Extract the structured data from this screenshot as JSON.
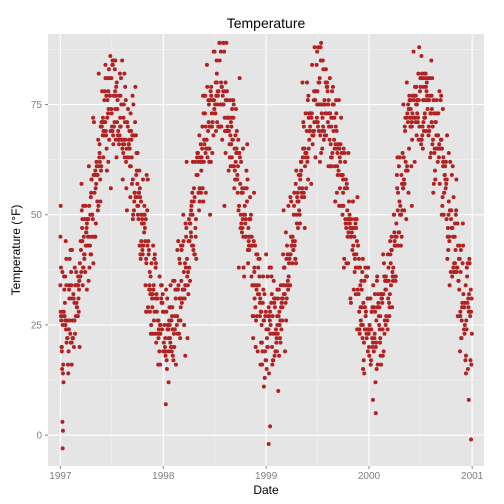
{
  "chart_data": {
    "type": "scatter",
    "title": "Temperature",
    "xlabel": "Date",
    "ylabel": "Temperature (°F)",
    "x_ticks": [
      "1997",
      "1998",
      "1999",
      "2000",
      "2001"
    ],
    "y_ticks": [
      "0",
      "25",
      "50",
      "75"
    ],
    "xlim": [
      "1996-11-18",
      "2001-02-12"
    ],
    "ylim": [
      -7,
      91
    ],
    "grid": true,
    "legend": "none",
    "colors": {
      "panel": "#e5e5e5",
      "grid_major": "#ffffff",
      "grid_minor": "#f2f2f2",
      "point": "#b22222"
    },
    "annual_cycle": {
      "mean_f": 50,
      "amplitude_f": 25,
      "peak_day_of_year": 196,
      "noise_f": 7
    },
    "start_date": "1997-01-01",
    "end_date": "2000-12-31",
    "points": [
      [
        "1997-01-01",
        45
      ],
      [
        "1997-01-02",
        52
      ],
      [
        "1997-01-03",
        38
      ],
      [
        "1997-01-05",
        27
      ],
      [
        "1997-01-06",
        19
      ],
      [
        "1997-01-08",
        3
      ],
      [
        "1997-01-09",
        -3
      ],
      [
        "1997-01-10",
        1
      ],
      [
        "1997-01-12",
        12
      ],
      [
        "1997-01-14",
        36
      ],
      [
        "1997-01-18",
        26
      ],
      [
        "1997-01-22",
        40
      ],
      [
        "1997-02-01",
        34
      ],
      [
        "1997-02-10",
        21
      ],
      [
        "1997-02-20",
        30
      ],
      [
        "1997-03-05",
        36
      ],
      [
        "1997-03-20",
        44
      ],
      [
        "1997-04-05",
        48
      ],
      [
        "1997-04-20",
        55
      ],
      [
        "1997-05-05",
        60
      ],
      [
        "1997-05-20",
        66
      ],
      [
        "1997-06-01",
        72
      ],
      [
        "1997-06-10",
        84
      ],
      [
        "1997-06-20",
        78
      ],
      [
        "1997-07-01",
        81
      ],
      [
        "1997-07-05",
        85
      ],
      [
        "1997-07-15",
        74
      ],
      [
        "1997-08-01",
        70
      ],
      [
        "1997-08-15",
        67
      ],
      [
        "1997-09-01",
        65
      ],
      [
        "1997-09-15",
        58
      ],
      [
        "1997-10-01",
        52
      ],
      [
        "1997-10-15",
        44
      ],
      [
        "1997-11-01",
        40
      ],
      [
        "1997-11-15",
        33
      ],
      [
        "1997-12-01",
        28
      ],
      [
        "1997-12-15",
        22
      ],
      [
        "1998-01-10",
        7
      ],
      [
        "1998-01-20",
        12
      ],
      [
        "1998-02-10",
        24
      ],
      [
        "1998-03-01",
        31
      ],
      [
        "1998-03-20",
        18
      ],
      [
        "1998-04-10",
        45
      ],
      [
        "1998-05-10",
        56
      ],
      [
        "1998-06-01",
        70
      ],
      [
        "1998-06-20",
        77
      ],
      [
        "1998-07-10",
        82
      ],
      [
        "1998-07-20",
        85
      ],
      [
        "1998-08-10",
        80
      ],
      [
        "1998-09-01",
        72
      ],
      [
        "1998-09-20",
        64
      ],
      [
        "1998-10-10",
        55
      ],
      [
        "1998-11-01",
        45
      ],
      [
        "1998-11-20",
        38
      ],
      [
        "1998-12-10",
        30
      ],
      [
        "1999-01-01",
        17
      ],
      [
        "1999-01-10",
        -2
      ],
      [
        "1999-01-15",
        2
      ],
      [
        "1999-02-10",
        25
      ],
      [
        "1999-03-05",
        32
      ],
      [
        "1999-04-01",
        45
      ],
      [
        "1999-05-01",
        59
      ],
      [
        "1999-06-01",
        72
      ],
      [
        "1999-06-20",
        78
      ],
      [
        "1999-07-01",
        87
      ],
      [
        "1999-07-15",
        89
      ],
      [
        "1999-08-01",
        80
      ],
      [
        "1999-08-20",
        72
      ],
      [
        "1999-09-10",
        65
      ],
      [
        "1999-10-01",
        55
      ],
      [
        "1999-10-20",
        46
      ],
      [
        "1999-11-15",
        38
      ],
      [
        "1999-12-10",
        25
      ],
      [
        "2000-01-01",
        20
      ],
      [
        "2000-01-15",
        8
      ],
      [
        "2000-01-25",
        5
      ],
      [
        "2000-02-10",
        22
      ],
      [
        "2000-03-01",
        33
      ],
      [
        "2000-04-01",
        44
      ],
      [
        "2000-05-01",
        56
      ],
      [
        "2000-06-01",
        70
      ],
      [
        "2000-06-20",
        76
      ],
      [
        "2000-07-10",
        81
      ],
      [
        "2000-07-20",
        82
      ],
      [
        "2000-08-10",
        77
      ],
      [
        "2000-09-01",
        68
      ],
      [
        "2000-09-20",
        62
      ],
      [
        "2000-10-10",
        53
      ],
      [
        "2000-11-01",
        39
      ],
      [
        "2000-11-20",
        28
      ],
      [
        "2000-12-10",
        14
      ],
      [
        "2000-12-20",
        8
      ],
      [
        "2000-12-28",
        -1
      ]
    ]
  }
}
